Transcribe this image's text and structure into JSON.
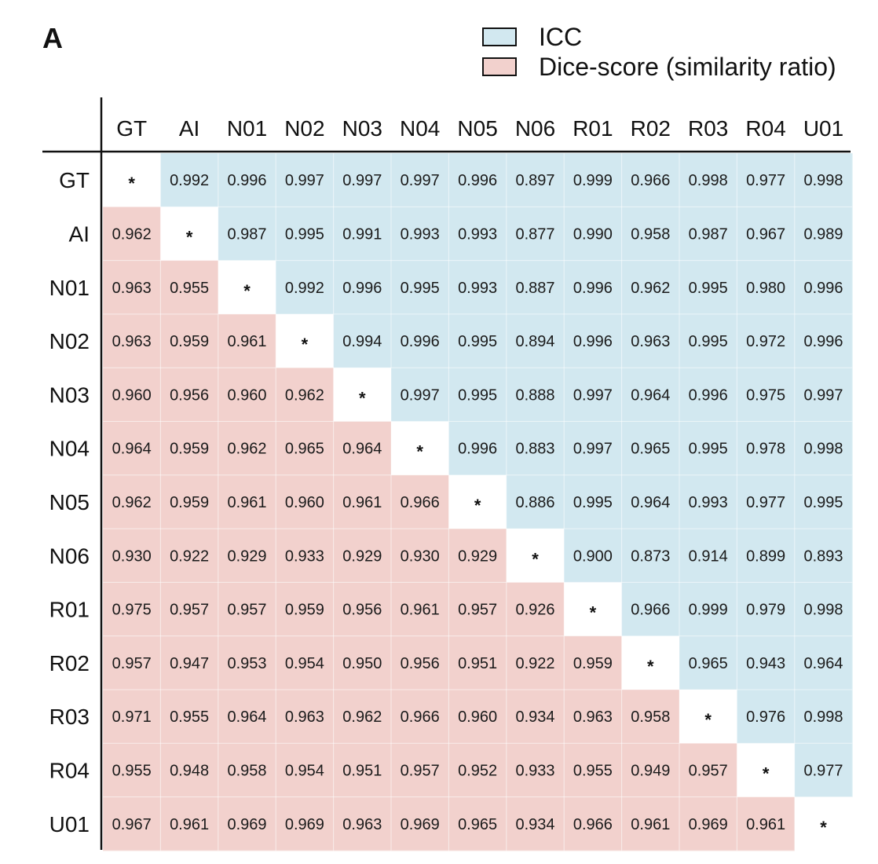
{
  "panel_label": "A",
  "legend": [
    {
      "label": "ICC",
      "color": "#d2e8f0"
    },
    {
      "label": "Dice-score (similarity ratio)",
      "color": "#f2d1cd"
    }
  ],
  "colors": {
    "upper": "#d2e8f0",
    "lower": "#f2d1cd",
    "diagonal": "#ffffff"
  },
  "chart_data": {
    "type": "heatmap",
    "diagonal_label": "*",
    "labels": [
      "GT",
      "AI",
      "N01",
      "N02",
      "N03",
      "N04",
      "N05",
      "N06",
      "R01",
      "R02",
      "R03",
      "R04",
      "U01"
    ],
    "upper_triangle_series": "ICC",
    "lower_triangle_series": "Dice-score (similarity ratio)",
    "matrix": [
      [
        null,
        "0.992",
        "0.996",
        "0.997",
        "0.997",
        "0.997",
        "0.996",
        "0.897",
        "0.999",
        "0.966",
        "0.998",
        "0.977",
        "0.998"
      ],
      [
        "0.962",
        null,
        "0.987",
        "0.995",
        "0.991",
        "0.993",
        "0.993",
        "0.877",
        "0.990",
        "0.958",
        "0.987",
        "0.967",
        "0.989"
      ],
      [
        "0.963",
        "0.955",
        null,
        "0.992",
        "0.996",
        "0.995",
        "0.993",
        "0.887",
        "0.996",
        "0.962",
        "0.995",
        "0.980",
        "0.996"
      ],
      [
        "0.963",
        "0.959",
        "0.961",
        null,
        "0.994",
        "0.996",
        "0.995",
        "0.894",
        "0.996",
        "0.963",
        "0.995",
        "0.972",
        "0.996"
      ],
      [
        "0.960",
        "0.956",
        "0.960",
        "0.962",
        null,
        "0.997",
        "0.995",
        "0.888",
        "0.997",
        "0.964",
        "0.996",
        "0.975",
        "0.997"
      ],
      [
        "0.964",
        "0.959",
        "0.962",
        "0.965",
        "0.964",
        null,
        "0.996",
        "0.883",
        "0.997",
        "0.965",
        "0.995",
        "0.978",
        "0.998"
      ],
      [
        "0.962",
        "0.959",
        "0.961",
        "0.960",
        "0.961",
        "0.966",
        null,
        "0.886",
        "0.995",
        "0.964",
        "0.993",
        "0.977",
        "0.995"
      ],
      [
        "0.930",
        "0.922",
        "0.929",
        "0.933",
        "0.929",
        "0.930",
        "0.929",
        null,
        "0.900",
        "0.873",
        "0.914",
        "0.899",
        "0.893"
      ],
      [
        "0.975",
        "0.957",
        "0.957",
        "0.959",
        "0.956",
        "0.961",
        "0.957",
        "0.926",
        null,
        "0.966",
        "0.999",
        "0.979",
        "0.998"
      ],
      [
        "0.957",
        "0.947",
        "0.953",
        "0.954",
        "0.950",
        "0.956",
        "0.951",
        "0.922",
        "0.959",
        null,
        "0.965",
        "0.943",
        "0.964"
      ],
      [
        "0.971",
        "0.955",
        "0.964",
        "0.963",
        "0.962",
        "0.966",
        "0.960",
        "0.934",
        "0.963",
        "0.958",
        null,
        "0.976",
        "0.998"
      ],
      [
        "0.955",
        "0.948",
        "0.958",
        "0.954",
        "0.951",
        "0.957",
        "0.952",
        "0.933",
        "0.955",
        "0.949",
        "0.957",
        null,
        "0.977"
      ],
      [
        "0.967",
        "0.961",
        "0.969",
        "0.969",
        "0.963",
        "0.969",
        "0.965",
        "0.934",
        "0.966",
        "0.961",
        "0.969",
        "0.961",
        null
      ]
    ]
  }
}
